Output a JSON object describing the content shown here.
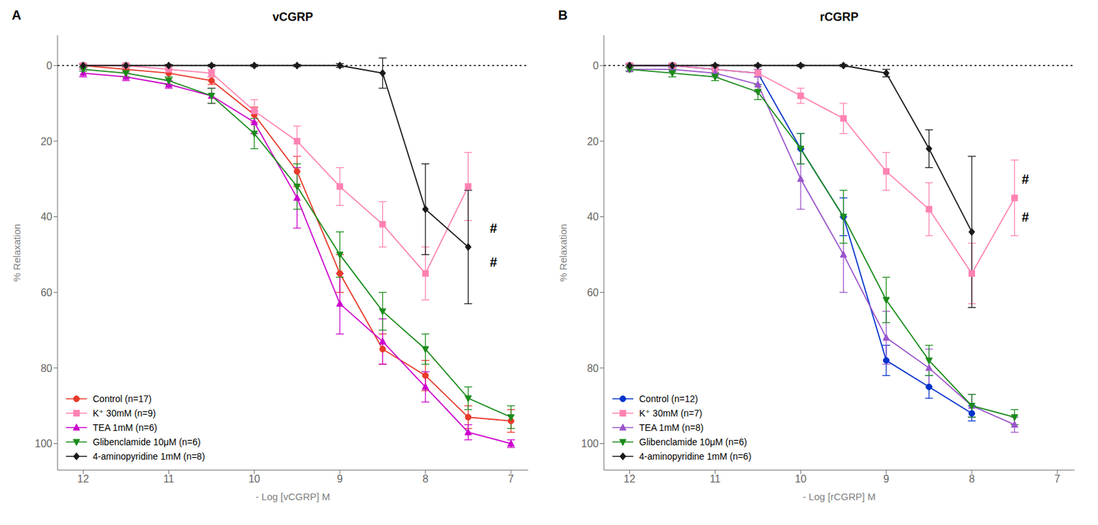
{
  "chart_data": [
    {
      "type": "line",
      "title": "vCGRP",
      "x_label": "- Log [vCGRP] M",
      "y_label": "% Relaxation",
      "xlim": [
        12.3,
        6.8
      ],
      "ylim": [
        107,
        -8
      ],
      "xticks": [
        12,
        11,
        10,
        9,
        8,
        7
      ],
      "yticks": [
        0,
        20,
        40,
        60,
        80,
        100
      ],
      "grid": false,
      "legend": "lower left",
      "hlines": [
        0
      ],
      "annotations": [
        {
          "text": "A"
        },
        {
          "text": "#",
          "x": 7.25,
          "y": 43
        },
        {
          "text": "#",
          "x": 7.25,
          "y": 52
        }
      ],
      "series": [
        {
          "name": "Control (n=17)",
          "color": "#E8392A",
          "marker": "circle",
          "line_style": "solid",
          "x": [
            12,
            11.5,
            11,
            10.5,
            10,
            9.5,
            9,
            8.5,
            8,
            7.5,
            7
          ],
          "values": [
            0,
            1,
            2,
            4,
            13,
            28,
            55,
            75,
            82,
            93,
            94
          ],
          "errors": [
            0.5,
            0.5,
            1,
            1,
            2,
            4,
            5,
            4,
            4,
            3,
            3
          ]
        },
        {
          "name": "K⁺ 30mM (n=9)",
          "color": "#FF82B2",
          "marker": "square",
          "line_style": "solid",
          "x": [
            12,
            11.5,
            11,
            10.5,
            10,
            9.5,
            9,
            8.5,
            8,
            7.5
          ],
          "values": [
            0,
            0,
            1,
            2,
            12,
            20,
            32,
            42,
            55,
            32
          ],
          "errors": [
            0.5,
            0.5,
            1,
            1,
            3,
            4,
            5,
            6,
            7,
            9
          ]
        },
        {
          "name": "TEA 1mM (n=6)",
          "color": "#CC00CC",
          "marker": "triangle-up",
          "line_style": "solid",
          "x": [
            12,
            11.5,
            11,
            10.5,
            10,
            9.5,
            9,
            8.5,
            8,
            7.5,
            7
          ],
          "values": [
            2,
            3,
            5,
            8,
            15,
            35,
            63,
            73,
            85,
            97,
            100
          ],
          "errors": [
            1,
            1,
            1,
            2,
            3,
            8,
            8,
            6,
            4,
            2,
            1
          ]
        },
        {
          "name": "Glibenclamide 10μM (n=6)",
          "color": "#1A8C1A",
          "marker": "triangle-down",
          "line_style": "solid",
          "x": [
            12,
            11.5,
            11,
            10.5,
            10,
            9.5,
            9,
            8.5,
            8,
            7.5,
            7
          ],
          "values": [
            1,
            2,
            4,
            8,
            18,
            32,
            50,
            65,
            75,
            88,
            93
          ],
          "errors": [
            0.5,
            1,
            1,
            2,
            4,
            6,
            6,
            5,
            4,
            3,
            3
          ]
        },
        {
          "name": "4-aminopyridine 1mM (n=8)",
          "color": "#1A1A1A",
          "marker": "diamond",
          "line_style": "solid",
          "x": [
            12,
            11.5,
            11,
            10.5,
            10,
            9.5,
            9,
            8.5,
            8,
            7.5
          ],
          "values": [
            0,
            0,
            0,
            0,
            0,
            0,
            0,
            2,
            38,
            48
          ],
          "errors": [
            0.3,
            0.3,
            0.3,
            0.3,
            0.3,
            0.3,
            0.5,
            4,
            12,
            15
          ]
        }
      ]
    },
    {
      "type": "line",
      "title": "rCGRP",
      "x_label": "- Log [rCGRP] M",
      "y_label": "% Relaxation",
      "xlim": [
        12.3,
        6.8
      ],
      "ylim": [
        107,
        -8
      ],
      "xticks": [
        12,
        11,
        10,
        9,
        8,
        7
      ],
      "yticks": [
        0,
        20,
        40,
        60,
        80,
        100
      ],
      "grid": false,
      "legend": "lower left",
      "hlines": [
        0
      ],
      "annotations": [
        {
          "text": "B"
        },
        {
          "text": "#",
          "x": 7.42,
          "y": 30
        },
        {
          "text": "#",
          "x": 7.42,
          "y": 40
        }
      ],
      "series": [
        {
          "name": "Control (n=12)",
          "color": "#0033CC",
          "marker": "circle",
          "line_style": "solid",
          "x": [
            12,
            11.5,
            11,
            10.5,
            10,
            9.5,
            9,
            8.5,
            8
          ],
          "values": [
            0,
            0,
            1,
            2,
            22,
            40,
            78,
            85,
            92
          ],
          "errors": [
            0.5,
            0.5,
            1,
            1,
            4,
            5,
            4,
            3,
            2
          ]
        },
        {
          "name": "K⁺ 30mM (n=7)",
          "color": "#FF82B2",
          "marker": "square",
          "line_style": "solid",
          "x": [
            12,
            11.5,
            11,
            10.5,
            10,
            9.5,
            9,
            8.5,
            8,
            7.5
          ],
          "values": [
            0,
            0,
            1,
            2,
            8,
            14,
            28,
            38,
            55,
            35
          ],
          "errors": [
            0.5,
            0.5,
            1,
            1,
            2,
            4,
            5,
            7,
            8,
            10
          ]
        },
        {
          "name": "TEA 1mM (n=8)",
          "color": "#9B55CC",
          "marker": "triangle-up",
          "line_style": "solid",
          "x": [
            12,
            11.5,
            11,
            10.5,
            10,
            9.5,
            9,
            8.5,
            8,
            7.5
          ],
          "values": [
            1,
            1,
            2,
            5,
            30,
            50,
            72,
            80,
            90,
            95
          ],
          "errors": [
            0.5,
            0.5,
            1,
            2,
            8,
            10,
            7,
            5,
            3,
            2
          ]
        },
        {
          "name": "Glibenclamide 10μM (n=6)",
          "color": "#1A8C1A",
          "marker": "triangle-down",
          "line_style": "solid",
          "x": [
            12,
            11.5,
            11,
            10.5,
            10,
            9.5,
            9,
            8.5,
            8,
            7.5
          ],
          "values": [
            1,
            2,
            3,
            7,
            22,
            40,
            62,
            78,
            90,
            93
          ],
          "errors": [
            0.5,
            1,
            1,
            2,
            4,
            7,
            6,
            4,
            3,
            2
          ]
        },
        {
          "name": "4-aminopyridine 1mM (n=6)",
          "color": "#1A1A1A",
          "marker": "diamond",
          "line_style": "solid",
          "x": [
            12,
            11.5,
            11,
            10.5,
            10,
            9.5,
            9,
            8.5,
            8
          ],
          "values": [
            0,
            0,
            0,
            0,
            0,
            0,
            2,
            22,
            44
          ],
          "errors": [
            0.3,
            0.3,
            0.3,
            0.3,
            0.3,
            0.3,
            1,
            5,
            20
          ]
        }
      ]
    }
  ]
}
